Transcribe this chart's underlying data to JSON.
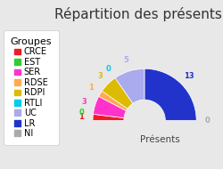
{
  "title": "Répartition des présents",
  "xlabel": "Présents",
  "groups": [
    "CRCE",
    "EST",
    "SER",
    "RDSE",
    "RDPI",
    "RTLI",
    "UC",
    "LR",
    "NI"
  ],
  "values": [
    1,
    0,
    3,
    1,
    3,
    0,
    5,
    13,
    0
  ],
  "colors": [
    "#ee1c25",
    "#33cc33",
    "#ff33cc",
    "#ffaa55",
    "#ddbb00",
    "#00ccee",
    "#aaaaee",
    "#2233cc",
    "#aaaaaa"
  ],
  "label_colors": [
    "#ee1c25",
    "#33cc33",
    "#ff33cc",
    "#ffaa55",
    "#ddbb00",
    "#00ccee",
    "#aaaaee",
    "#2233cc",
    "#aaaaaa"
  ],
  "background_color": "#e8e8e8",
  "legend_bg": "#ffffff",
  "title_fontsize": 11,
  "legend_fontsize": 7
}
